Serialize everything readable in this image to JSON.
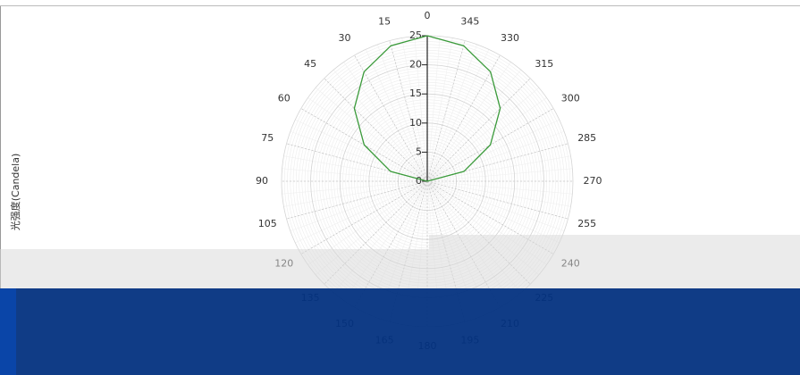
{
  "chart_data": {
    "type": "polar",
    "y_label": "光强度(Candela)",
    "theta": [
      0,
      15,
      30,
      45,
      60,
      75,
      90,
      105,
      120,
      135,
      150,
      165,
      180,
      195,
      210,
      225,
      240,
      255,
      270,
      285,
      300,
      315,
      330,
      345,
      360
    ],
    "values": [
      25,
      24.1,
      21.7,
      17.7,
      12.5,
      6.5,
      0,
      0,
      0,
      0,
      0,
      0,
      0,
      0,
      0,
      0,
      0,
      0,
      0,
      6.5,
      12.5,
      17.7,
      21.7,
      24.1,
      25
    ],
    "color": "#3a9a3a",
    "rlim": [
      0,
      25
    ],
    "rticks": [
      0,
      5,
      10,
      15,
      20,
      25
    ],
    "thetaticks": [
      0,
      15,
      30,
      45,
      60,
      75,
      90,
      105,
      120,
      135,
      150,
      165,
      180,
      195,
      210,
      225,
      240,
      255,
      270,
      285,
      300,
      315,
      330,
      345
    ],
    "grid": true
  }
}
